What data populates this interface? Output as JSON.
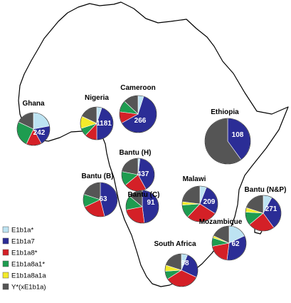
{
  "haplogroups": [
    {
      "key": "E1b1a_star",
      "label": "E1b1a*",
      "color": "#bde3f2"
    },
    {
      "key": "E1b1a7",
      "label": "E1b1a7",
      "color": "#2b2d96"
    },
    {
      "key": "E1b1a8_star",
      "label": "E1b1a8*",
      "color": "#d42027"
    },
    {
      "key": "E1b1a8a1_star",
      "label": "E1b1a8a1*",
      "color": "#1e9c50"
    },
    {
      "key": "E1b1a8a1a",
      "label": "E1b1a8a1a",
      "color": "#f3ea2a"
    },
    {
      "key": "Y_other",
      "label": "Y*(xE1b1a)",
      "color": "#555555"
    }
  ],
  "populations": [
    {
      "name": "Ghana",
      "n": "242",
      "fractions": [
        0.22,
        0.2,
        0.15,
        0.25,
        0.0,
        0.18
      ]
    },
    {
      "name": "Nigeria",
      "n": "1181",
      "fractions": [
        0.05,
        0.45,
        0.12,
        0.08,
        0.12,
        0.18
      ]
    },
    {
      "name": "Cameroon",
      "n": "266",
      "fractions": [
        0.05,
        0.62,
        0.1,
        0.1,
        0.0,
        0.13
      ]
    },
    {
      "name": "Ethiopia",
      "n": "108",
      "fractions": [
        0.0,
        0.4,
        0.0,
        0.0,
        0.0,
        0.6
      ]
    },
    {
      "name": "Bantu (H)",
      "n": "437",
      "fractions": [
        0.02,
        0.4,
        0.22,
        0.14,
        0.0,
        0.22
      ]
    },
    {
      "name": "Bantu (B)",
      "n": "63",
      "fractions": [
        0.0,
        0.46,
        0.22,
        0.12,
        0.0,
        0.2
      ]
    },
    {
      "name": "Bantu (C)",
      "n": "91",
      "fractions": [
        0.0,
        0.48,
        0.24,
        0.14,
        0.0,
        0.14
      ]
    },
    {
      "name": "Malawi",
      "n": "209",
      "fractions": [
        0.06,
        0.28,
        0.28,
        0.12,
        0.03,
        0.23
      ]
    },
    {
      "name": "Bantu (N&P)",
      "n": "271",
      "fractions": [
        0.08,
        0.32,
        0.24,
        0.12,
        0.04,
        0.2
      ]
    },
    {
      "name": "Mozambique",
      "n": "62",
      "fractions": [
        0.18,
        0.34,
        0.2,
        0.08,
        0.02,
        0.18
      ]
    },
    {
      "name": "South Africa",
      "n": "98",
      "fractions": [
        0.06,
        0.26,
        0.34,
        0.08,
        0.06,
        0.2
      ]
    }
  ]
}
